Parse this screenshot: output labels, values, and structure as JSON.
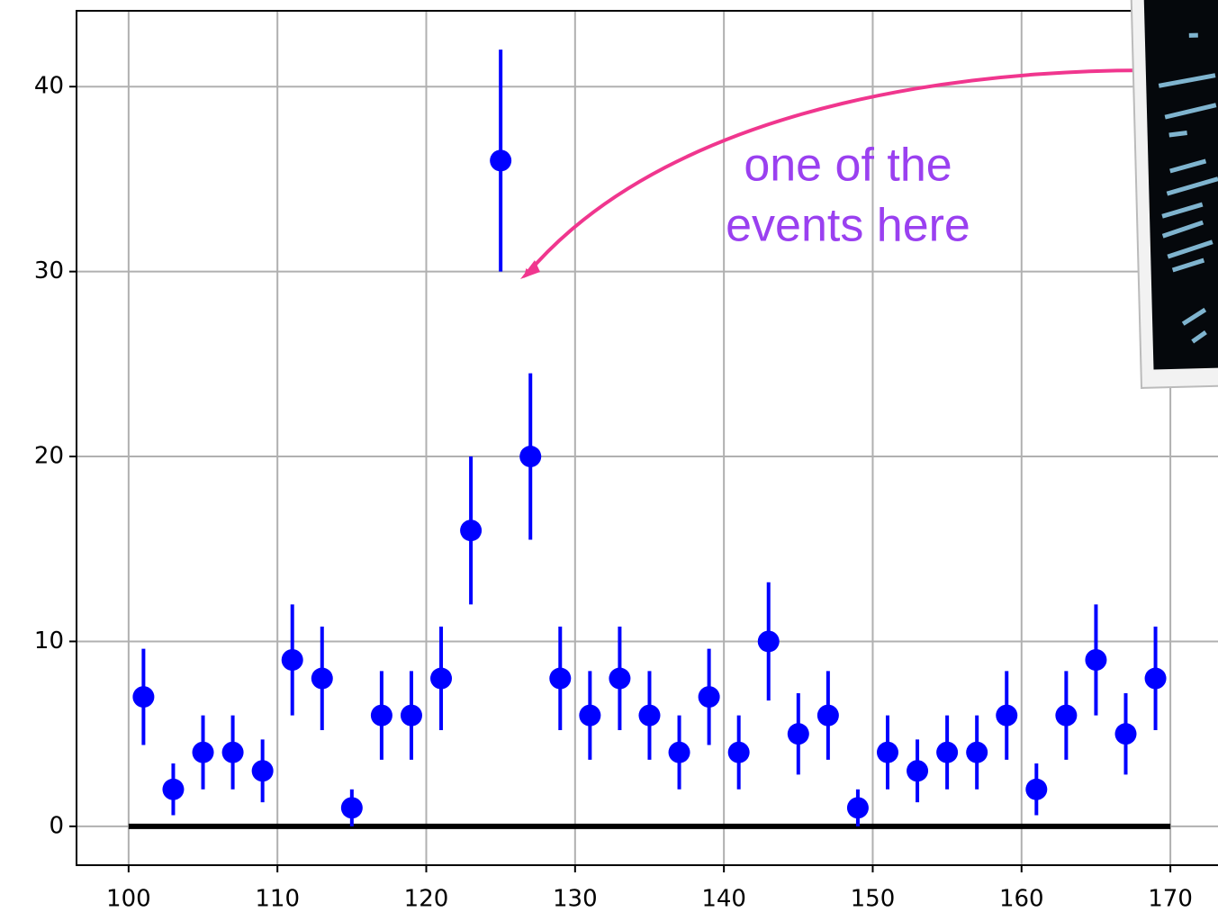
{
  "chart_data": {
    "type": "errorbar",
    "color": "#0000ff",
    "x": [
      101,
      103,
      105,
      107,
      109,
      111,
      113,
      115,
      117,
      119,
      121,
      123,
      125,
      127,
      129,
      131,
      133,
      135,
      137,
      139,
      141,
      143,
      145,
      147,
      149,
      151,
      153,
      155,
      157,
      159,
      161,
      163,
      165,
      167,
      169
    ],
    "values": [
      7,
      2,
      4,
      4,
      3,
      9,
      8,
      1,
      6,
      6,
      8,
      16,
      36,
      20,
      8,
      6,
      8,
      6,
      4,
      7,
      4,
      10,
      5,
      6,
      1,
      4,
      3,
      4,
      4,
      6,
      2,
      6,
      9,
      5,
      8
    ],
    "errors": [
      2.6,
      1.4,
      2,
      2,
      1.7,
      3,
      2.8,
      1,
      2.4,
      2.4,
      2.8,
      4,
      6,
      4.5,
      2.8,
      2.4,
      2.8,
      2.4,
      2,
      2.6,
      2,
      3.2,
      2.2,
      2.4,
      1,
      2,
      1.7,
      2,
      2,
      2.4,
      1.4,
      2.4,
      3,
      2.2,
      2.8
    ],
    "xlim": [
      96.5,
      173.2
    ],
    "ylim": [
      -2.1,
      44.1
    ],
    "xticks": [
      100,
      110,
      120,
      130,
      140,
      150,
      160,
      170
    ],
    "yticks": [
      0,
      10,
      20,
      30,
      40
    ],
    "grid": true,
    "hline": {
      "y": 0,
      "xmin": 100,
      "xmax": 170,
      "color": "#000000"
    },
    "annotation": [
      "one of the",
      "events here"
    ]
  }
}
